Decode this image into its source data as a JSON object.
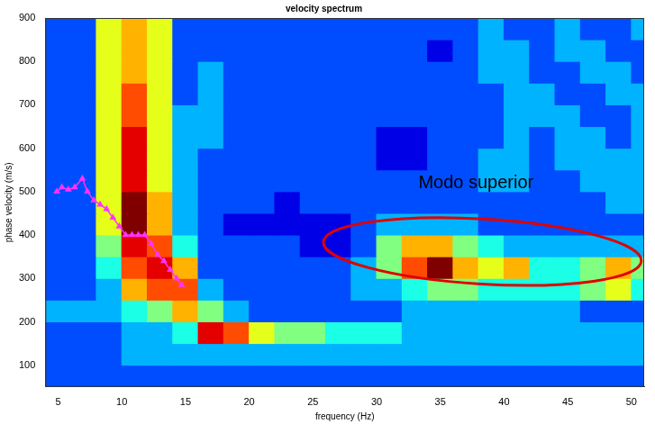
{
  "chart_data": {
    "type": "heatmap",
    "title": "velocity spectrum",
    "x_label": "frequency (Hz)",
    "y_label": "phase velocity (m/s)",
    "xlim": [
      4,
      51
    ],
    "ylim": [
      50,
      900
    ],
    "xticks": [
      5,
      10,
      15,
      20,
      25,
      30,
      35,
      40,
      45,
      50
    ],
    "yticks": [
      100,
      200,
      300,
      400,
      500,
      600,
      700,
      800,
      900
    ],
    "grid": false,
    "heatmap": {
      "x_edges": [
        4,
        6,
        8,
        10,
        12,
        14,
        16,
        18,
        20,
        22,
        24,
        26,
        28,
        30,
        32,
        34,
        36,
        38,
        40,
        42,
        44,
        46,
        48,
        50,
        52
      ],
      "y_edges": [
        50,
        100,
        150,
        200,
        250,
        300,
        350,
        400,
        450,
        500,
        550,
        600,
        650,
        700,
        750,
        800,
        850,
        900
      ],
      "zlim": [
        0,
        10
      ],
      "cells": [
        [
          2,
          2,
          2,
          2,
          2,
          2,
          2,
          2,
          2,
          2,
          2,
          2,
          2,
          2,
          2,
          2,
          2,
          2,
          2,
          2,
          2,
          2,
          2,
          2
        ],
        [
          2,
          2,
          2,
          3,
          3,
          3,
          3,
          3,
          3,
          3,
          3,
          3,
          3,
          3,
          3,
          3,
          3,
          3,
          3,
          3,
          3,
          3,
          3,
          3
        ],
        [
          2,
          2,
          2,
          3,
          3,
          4,
          9,
          8,
          6,
          5,
          5,
          4,
          4,
          4,
          3,
          3,
          3,
          3,
          3,
          3,
          3,
          3,
          3,
          3
        ],
        [
          3,
          3,
          3,
          4,
          5,
          7,
          5,
          3,
          2,
          2,
          2,
          2,
          2,
          2,
          3,
          3,
          3,
          3,
          3,
          3,
          3,
          2,
          2,
          2
        ],
        [
          2,
          2,
          3,
          7,
          8,
          8,
          3,
          2,
          2,
          2,
          2,
          2,
          3,
          3,
          4,
          5,
          5,
          4,
          4,
          4,
          4,
          5,
          6,
          4
        ],
        [
          2,
          2,
          4,
          8,
          9,
          7,
          2,
          2,
          2,
          2,
          2,
          2,
          3,
          5,
          8,
          10,
          7,
          6,
          7,
          4,
          4,
          5,
          7,
          5
        ],
        [
          2,
          2,
          5,
          9,
          8,
          4,
          2,
          2,
          2,
          2,
          1,
          1,
          2,
          5,
          7,
          7,
          5,
          4,
          3,
          3,
          3,
          3,
          3,
          3
        ],
        [
          2,
          2,
          6,
          10,
          7,
          3,
          2,
          1,
          1,
          1,
          1,
          1,
          2,
          3,
          3,
          3,
          3,
          2,
          2,
          2,
          2,
          2,
          2,
          2
        ],
        [
          2,
          2,
          6,
          10,
          7,
          3,
          2,
          2,
          2,
          1,
          2,
          2,
          2,
          2,
          2,
          2,
          2,
          2,
          2,
          2,
          2,
          2,
          3,
          3
        ],
        [
          2,
          2,
          6,
          9,
          6,
          3,
          2,
          2,
          2,
          2,
          2,
          2,
          2,
          2,
          2,
          2,
          2,
          3,
          3,
          2,
          2,
          3,
          3,
          3
        ],
        [
          2,
          2,
          6,
          9,
          6,
          3,
          2,
          2,
          2,
          2,
          2,
          2,
          2,
          1,
          1,
          2,
          2,
          3,
          3,
          2,
          3,
          3,
          3,
          3
        ],
        [
          2,
          2,
          6,
          9,
          6,
          3,
          3,
          2,
          2,
          2,
          2,
          2,
          2,
          1,
          1,
          2,
          2,
          2,
          3,
          2,
          3,
          3,
          2,
          3
        ],
        [
          2,
          2,
          6,
          8,
          6,
          3,
          3,
          2,
          2,
          2,
          2,
          2,
          2,
          2,
          2,
          2,
          2,
          2,
          3,
          3,
          3,
          2,
          2,
          3
        ],
        [
          2,
          2,
          6,
          8,
          6,
          2,
          3,
          2,
          2,
          2,
          2,
          2,
          2,
          2,
          2,
          2,
          2,
          2,
          3,
          3,
          2,
          2,
          3,
          3
        ],
        [
          2,
          2,
          6,
          7,
          6,
          2,
          3,
          2,
          2,
          2,
          2,
          2,
          2,
          2,
          2,
          2,
          2,
          3,
          3,
          2,
          2,
          3,
          3,
          2
        ],
        [
          2,
          2,
          6,
          7,
          6,
          2,
          2,
          2,
          2,
          2,
          2,
          2,
          2,
          2,
          2,
          1,
          2,
          3,
          3,
          2,
          3,
          3,
          2,
          2
        ],
        [
          2,
          2,
          6,
          7,
          6,
          2,
          2,
          2,
          2,
          2,
          2,
          2,
          2,
          2,
          2,
          2,
          2,
          3,
          2,
          2,
          3,
          2,
          2,
          3
        ]
      ]
    },
    "series": [
      {
        "type": "line",
        "color": "#ff33ff",
        "marker": "triangle",
        "line_style": "solid",
        "x": [
          4.9,
          5.3,
          5.8,
          6.3,
          6.9,
          7.3,
          7.8,
          8.3,
          8.8,
          9.3,
          9.8,
          10.3,
          10.8,
          11.3,
          11.8,
          12.3,
          12.8,
          13.3,
          13.8,
          14.3,
          14.7
        ],
        "values": [
          500,
          510,
          505,
          510,
          530,
          500,
          480,
          470,
          460,
          440,
          420,
          400,
          400,
          400,
          400,
          380,
          355,
          340,
          320,
          300,
          285
        ]
      }
    ],
    "annotations": [
      {
        "text": "Modo superior",
        "x": 37.8,
        "y": 519
      }
    ],
    "shapes": [
      {
        "type": "ellipse",
        "x": 38.3,
        "y": 362,
        "x_radius": 12.5,
        "y_radius": 75,
        "color": "#e00000"
      }
    ]
  }
}
